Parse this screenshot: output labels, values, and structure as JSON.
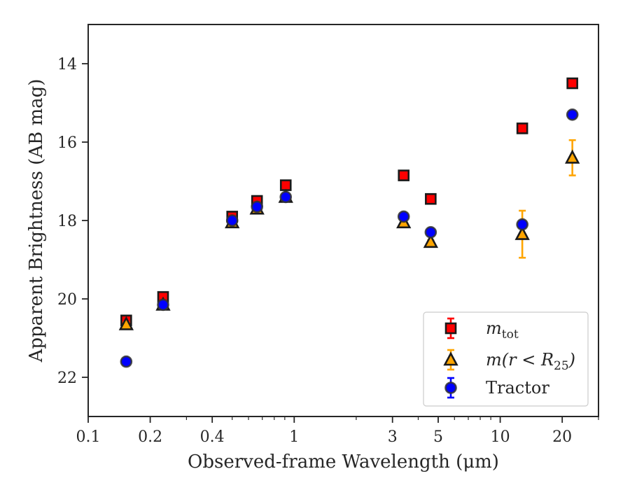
{
  "chart_data": {
    "type": "scatter",
    "xlabel": "Observed-frame Wavelength (μm)",
    "ylabel": "Apparent Brightness (AB mag)",
    "x_scale": "log",
    "xlim": [
      0.1,
      30
    ],
    "ylim": [
      23,
      13
    ],
    "y_inverted": true,
    "x_ticks": [
      {
        "value": 0.1,
        "label": "0.1"
      },
      {
        "value": 0.2,
        "label": "0.2"
      },
      {
        "value": 0.4,
        "label": "0.4"
      },
      {
        "value": 1,
        "label": "1"
      },
      {
        "value": 3,
        "label": "3"
      },
      {
        "value": 5,
        "label": "5"
      },
      {
        "value": 10,
        "label": "10"
      },
      {
        "value": 20,
        "label": "20"
      }
    ],
    "y_ticks": [
      {
        "value": 14,
        "label": "14"
      },
      {
        "value": 16,
        "label": "16"
      },
      {
        "value": 18,
        "label": "18"
      },
      {
        "value": 20,
        "label": "20"
      },
      {
        "value": 22,
        "label": "22"
      }
    ],
    "grid": false,
    "legend_position": "bottom-right",
    "series": [
      {
        "name": "m_tot",
        "legend_main": "m",
        "legend_sub": "tot",
        "marker": "square",
        "color": "#ff0000",
        "errcolor": "#ff0000",
        "points": [
          {
            "x": 0.153,
            "y": 20.55,
            "err": 0.1
          },
          {
            "x": 0.231,
            "y": 19.95,
            "err": 0.05
          },
          {
            "x": 0.5,
            "y": 17.9,
            "err": 0.05
          },
          {
            "x": 0.66,
            "y": 17.5,
            "err": 0.05
          },
          {
            "x": 0.91,
            "y": 17.1,
            "err": 0.05
          },
          {
            "x": 3.4,
            "y": 16.85,
            "err": 0.05
          },
          {
            "x": 4.6,
            "y": 17.45,
            "err": 0.05
          },
          {
            "x": 12.8,
            "y": 15.65,
            "err": 0.05
          },
          {
            "x": 22.4,
            "y": 14.5,
            "err": 0.05
          }
        ]
      },
      {
        "name": "m(r < R_25)",
        "legend_main": "m(r < R",
        "legend_sub": "25",
        "legend_tail": ")",
        "marker": "triangle",
        "color": "#ffa500",
        "errcolor": "#ffa500",
        "points": [
          {
            "x": 0.153,
            "y": 20.65,
            "err": 0.05
          },
          {
            "x": 0.231,
            "y": 20.15,
            "err": 0.05
          },
          {
            "x": 0.5,
            "y": 18.05,
            "err": 0.05
          },
          {
            "x": 0.66,
            "y": 17.7,
            "err": 0.05
          },
          {
            "x": 0.91,
            "y": 17.4,
            "err": 0.05
          },
          {
            "x": 3.4,
            "y": 18.05,
            "err": 0.05
          },
          {
            "x": 4.6,
            "y": 18.55,
            "err": 0.05
          },
          {
            "x": 12.8,
            "y": 18.35,
            "err": 0.6
          },
          {
            "x": 22.4,
            "y": 16.4,
            "err": 0.45
          }
        ]
      },
      {
        "name": "Tractor",
        "legend_main": "Tractor",
        "marker": "circle",
        "color": "#0000ff",
        "errcolor": "#0000ff",
        "points": [
          {
            "x": 0.153,
            "y": 21.6,
            "err": 0.05
          },
          {
            "x": 0.231,
            "y": 20.15,
            "err": 0.05
          },
          {
            "x": 0.5,
            "y": 18.0,
            "err": 0.05
          },
          {
            "x": 0.66,
            "y": 17.65,
            "err": 0.05
          },
          {
            "x": 0.91,
            "y": 17.4,
            "err": 0.05
          },
          {
            "x": 3.4,
            "y": 17.9,
            "err": 0.05
          },
          {
            "x": 4.6,
            "y": 18.3,
            "err": 0.05
          },
          {
            "x": 12.8,
            "y": 18.1,
            "err": 0.05
          },
          {
            "x": 22.4,
            "y": 15.3,
            "err": 0.05
          }
        ]
      }
    ]
  }
}
